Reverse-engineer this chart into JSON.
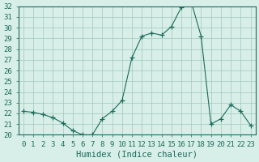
{
  "x": [
    0,
    1,
    2,
    3,
    4,
    5,
    6,
    7,
    8,
    9,
    10,
    11,
    12,
    13,
    14,
    15,
    16,
    17,
    18,
    19,
    20,
    21,
    22,
    23
  ],
  "y": [
    22.2,
    22.1,
    21.9,
    21.6,
    21.1,
    20.4,
    20.0,
    20.0,
    21.5,
    22.2,
    23.2,
    27.2,
    29.2,
    29.5,
    29.3,
    30.1,
    31.9,
    32.4,
    29.2,
    21.0,
    21.5,
    22.8,
    22.2,
    20.9
  ],
  "xlabel": "Humidex (Indice chaleur)",
  "ylabel": "",
  "ylim": [
    20,
    32
  ],
  "xlim": [
    -0.5,
    23.5
  ],
  "yticks": [
    20,
    21,
    22,
    23,
    24,
    25,
    26,
    27,
    28,
    29,
    30,
    31,
    32
  ],
  "xticks": [
    0,
    1,
    2,
    3,
    4,
    5,
    6,
    7,
    8,
    9,
    10,
    11,
    12,
    13,
    14,
    15,
    16,
    17,
    18,
    19,
    20,
    21,
    22,
    23
  ],
  "line_color": "#1a6b5a",
  "marker_color": "#1a6b5a",
  "bg_color": "#d8eee8",
  "grid_color": "#a0c8bc",
  "axis_color": "#1a6b5a",
  "label_color": "#1a6b5a",
  "font_size": 7.5
}
